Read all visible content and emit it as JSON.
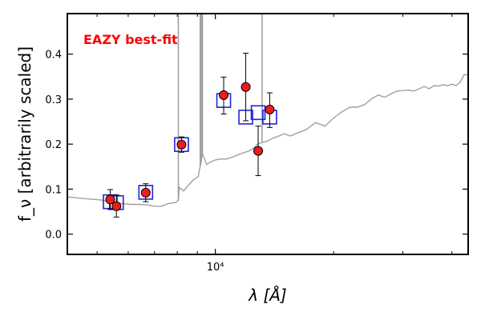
{
  "chart_data": {
    "type": "scatter",
    "title": "",
    "xlabel": "λ [Å]",
    "ylabel": "f_ν [arbitrarily scaled]",
    "xscale": "log",
    "xlim": [
      4200,
      44000
    ],
    "ylim": [
      -0.045,
      0.49
    ],
    "yticks": [
      0.0,
      0.1,
      0.2,
      0.3,
      0.4
    ],
    "ytick_labels": [
      "0.0",
      "0.1",
      "0.2",
      "0.3",
      "0.4"
    ],
    "xtick_labels": [
      {
        "value": 10000,
        "label": "10⁴"
      }
    ],
    "grid": false,
    "legend": "none",
    "annotation": {
      "text": "EAZY best-fit",
      "color": "#ff0000"
    },
    "series": [
      {
        "kind": "line",
        "color": "#a0a0a0",
        "x": [
          4200,
          4500,
          4800,
          5100,
          5300,
          5500,
          5800,
          6100,
          6400,
          6700,
          7000,
          7300,
          7600,
          7900,
          8050,
          8100,
          8300,
          8500,
          8800,
          9050,
          9100,
          9200,
          9250,
          9300,
          9500,
          9700,
          10000,
          10300,
          10700,
          11200,
          11700,
          12200,
          12600,
          12800,
          13000,
          13500,
          14000,
          14500,
          15000,
          15500,
          16000,
          17000,
          18000,
          19000,
          20000,
          21000,
          22000,
          23000,
          24000,
          25000,
          26000,
          27000,
          28000,
          29000,
          30000,
          31000,
          32000,
          33000,
          34000,
          35000,
          36000,
          37000,
          38000,
          39000,
          40000,
          41000,
          42000,
          43000,
          44000
        ],
        "y": [
          0.083,
          0.08,
          0.078,
          0.076,
          0.073,
          0.07,
          0.068,
          0.066,
          0.066,
          0.065,
          0.062,
          0.062,
          0.068,
          0.07,
          0.075,
          0.104,
          0.096,
          0.107,
          0.121,
          0.128,
          0.142,
          0.16,
          0.175,
          0.176,
          0.155,
          0.16,
          0.165,
          0.167,
          0.167,
          0.173,
          0.18,
          0.185,
          0.193,
          0.2,
          0.202,
          0.206,
          0.213,
          0.218,
          0.223,
          0.218,
          0.223,
          0.232,
          0.248,
          0.24,
          0.258,
          0.272,
          0.282,
          0.282,
          0.288,
          0.301,
          0.309,
          0.304,
          0.312,
          0.318,
          0.319,
          0.32,
          0.318,
          0.323,
          0.328,
          0.323,
          0.33,
          0.329,
          0.332,
          0.33,
          0.333,
          0.33,
          0.338,
          0.355,
          0.353
        ]
      },
      {
        "kind": "spikes",
        "color": "#a0a0a0",
        "x": [
          8050,
          9150,
          9210,
          9270,
          13150
        ],
        "y": [
          0.49,
          0.49,
          0.49,
          0.49,
          0.49
        ]
      },
      {
        "kind": "squares",
        "color": "#2222dd",
        "x": [
          5400,
          5600,
          6650,
          8200,
          10500,
          11950,
          12850,
          13750
        ],
        "y": [
          0.072,
          0.07,
          0.093,
          0.199,
          0.297,
          0.26,
          0.27,
          0.26
        ]
      },
      {
        "kind": "points",
        "color": "#ee1c1c",
        "edge_color": "#000000",
        "x": [
          5400,
          5600,
          6650,
          8200,
          10500,
          11950,
          12850,
          13750
        ],
        "y": [
          0.077,
          0.062,
          0.092,
          0.199,
          0.309,
          0.327,
          0.185,
          0.277
        ],
        "yerr_low": [
          0.022,
          0.024,
          0.02,
          0.017,
          0.042,
          0.075,
          0.055,
          0.04
        ],
        "yerr_high": [
          0.022,
          0.025,
          0.02,
          0.017,
          0.04,
          0.075,
          0.055,
          0.037
        ]
      }
    ]
  }
}
